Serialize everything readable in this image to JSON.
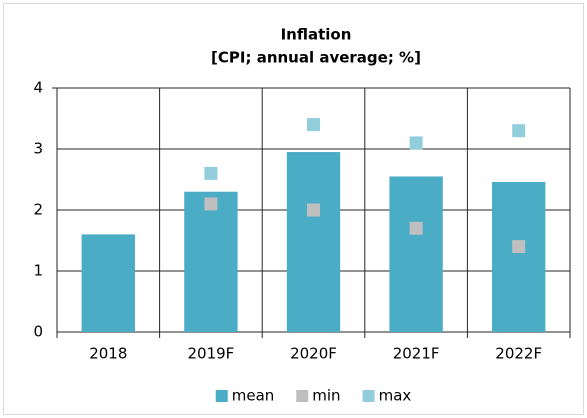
{
  "chart_data": {
    "type": "bar",
    "title": "Inflation",
    "subtitle": "[CPI; annual average; %]",
    "categories": [
      "2018",
      "2019F",
      "2020F",
      "2021F",
      "2022F"
    ],
    "series": [
      {
        "name": "mean",
        "type": "bar",
        "color": "#4bacc6",
        "values": [
          1.6,
          2.3,
          2.95,
          2.55,
          2.46
        ]
      },
      {
        "name": "min",
        "type": "marker",
        "color": "#bfbfbf",
        "values": [
          null,
          2.1,
          2.0,
          1.7,
          1.4
        ]
      },
      {
        "name": "max",
        "type": "marker",
        "color": "#92cddc",
        "values": [
          null,
          2.6,
          3.4,
          3.1,
          3.3
        ]
      }
    ],
    "ylim": [
      0,
      4
    ],
    "yticks": [
      0,
      1,
      2,
      3,
      4
    ],
    "grid": true,
    "legend": "bottom"
  }
}
